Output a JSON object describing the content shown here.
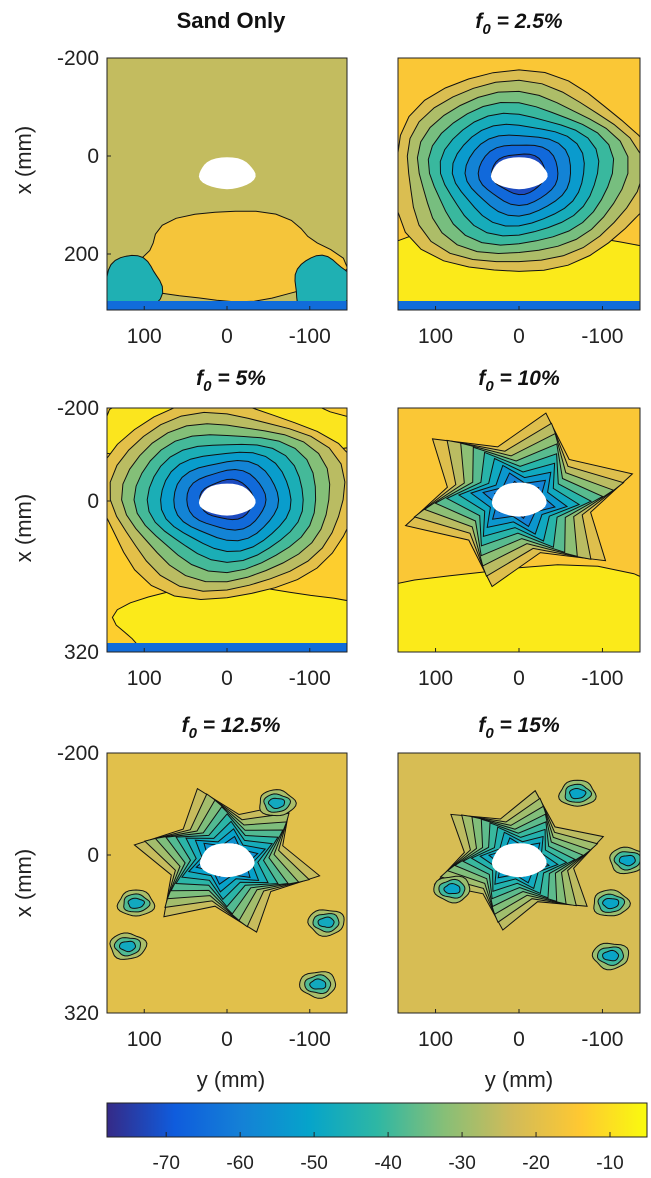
{
  "figure": {
    "colormap": "parula",
    "colorbar": {
      "min": -78,
      "max": -5,
      "ticks": [
        -70,
        -60,
        -50,
        -40,
        -30,
        -20,
        -10
      ],
      "tick_labels": [
        "-70",
        "-60",
        "-50",
        "-40",
        "-30",
        "-20",
        "-10"
      ],
      "stops": [
        "#352a87",
        "#0f5cdd",
        "#1481d6",
        "#06a4ca",
        "#2eb7a4",
        "#87bf77",
        "#d1bb59",
        "#fec832",
        "#f9fb0e"
      ]
    }
  },
  "chart_data": [
    {
      "type": "heatmap",
      "subtype": "filled-contour",
      "title": "Sand Only",
      "title_style": "bold",
      "xlabel": "",
      "ylabel": "x (mm)",
      "y_ticks": [
        "-200",
        "0",
        "200"
      ],
      "x_ticks": [
        "100",
        "0",
        "-100"
      ],
      "xlim": [
        145,
        -145
      ],
      "ylim": [
        -225,
        310
      ],
      "hole": {
        "y": 0,
        "x": 20
      },
      "min_value": -75,
      "background_value": -25,
      "features": [
        "deep minimum centred at x≈20 mm",
        "low band along x≈300 mm",
        "lobes toward x≈200 mm at both edges"
      ]
    },
    {
      "type": "heatmap",
      "subtype": "filled-contour",
      "title_symbol": "f",
      "title_subscript": "0",
      "title_value": " = 2.5%",
      "xlabel": "",
      "ylabel": "",
      "x_ticks": [
        "100",
        "0",
        "-100"
      ],
      "xlim": [
        145,
        -145
      ],
      "ylim": [
        -225,
        310
      ],
      "hole": {
        "y": 0,
        "x": 20
      },
      "min_value": -72,
      "background_value": -15,
      "features": [
        "broad minimum around x≈20 mm",
        "high values for x > 220 mm",
        "thin low band along x≈300 mm"
      ]
    },
    {
      "type": "heatmap",
      "subtype": "filled-contour",
      "title_symbol": "f",
      "title_subscript": "0",
      "title_value": " = 5%",
      "xlabel": "",
      "ylabel": "x (mm)",
      "y_ticks": [
        "-200",
        "0",
        "320"
      ],
      "x_ticks": [
        "100",
        "0",
        "-100"
      ],
      "xlim": [
        145,
        -145
      ],
      "ylim": [
        -225,
        320
      ],
      "hole": {
        "y": 0,
        "x": -20
      },
      "min_value": -72,
      "background_value": -13,
      "features": [
        "concentric minimum centred at x≈-20 mm",
        "high band near x≈200 mm"
      ]
    },
    {
      "type": "heatmap",
      "subtype": "filled-contour",
      "title_symbol": "f",
      "title_subscript": "0",
      "title_value": " = 10%",
      "xlabel": "",
      "ylabel": "",
      "x_ticks": [
        "100",
        "0",
        "-100"
      ],
      "xlim": [
        145,
        -145
      ],
      "ylim": [
        -225,
        320
      ],
      "hole": {
        "y": 0,
        "x": -20
      },
      "min_value": -65,
      "background_value": -15,
      "features": [
        "star-shaped minimum around the void",
        "high band for x > 180 mm"
      ]
    },
    {
      "type": "heatmap",
      "subtype": "filled-contour",
      "title_symbol": "f",
      "title_subscript": "0",
      "title_value": " = 12.5%",
      "xlabel": "y (mm)",
      "ylabel": "x (mm)",
      "y_ticks": [
        "-200",
        "0",
        "320"
      ],
      "x_ticks": [
        "100",
        "0",
        "-100"
      ],
      "xlim": [
        145,
        -145
      ],
      "ylim": [
        -225,
        320
      ],
      "hole": {
        "y": 0,
        "x": 0
      },
      "min_value": -60,
      "background_value": -20,
      "features": [
        "irregular minimum around the void",
        "small isolated pockets near the edges"
      ]
    },
    {
      "type": "heatmap",
      "subtype": "filled-contour",
      "title_symbol": "f",
      "title_subscript": "0",
      "title_value": " = 15%",
      "xlabel": "y (mm)",
      "ylabel": "",
      "x_ticks": [
        "100",
        "0",
        "-100"
      ],
      "xlim": [
        145,
        -145
      ],
      "ylim": [
        -225,
        320
      ],
      "hole": {
        "y": 0,
        "x": 0
      },
      "min_value": -55,
      "background_value": -22,
      "features": [
        "elongated minimum extending from the void",
        "scattered pockets in upper right and lower right"
      ]
    }
  ]
}
